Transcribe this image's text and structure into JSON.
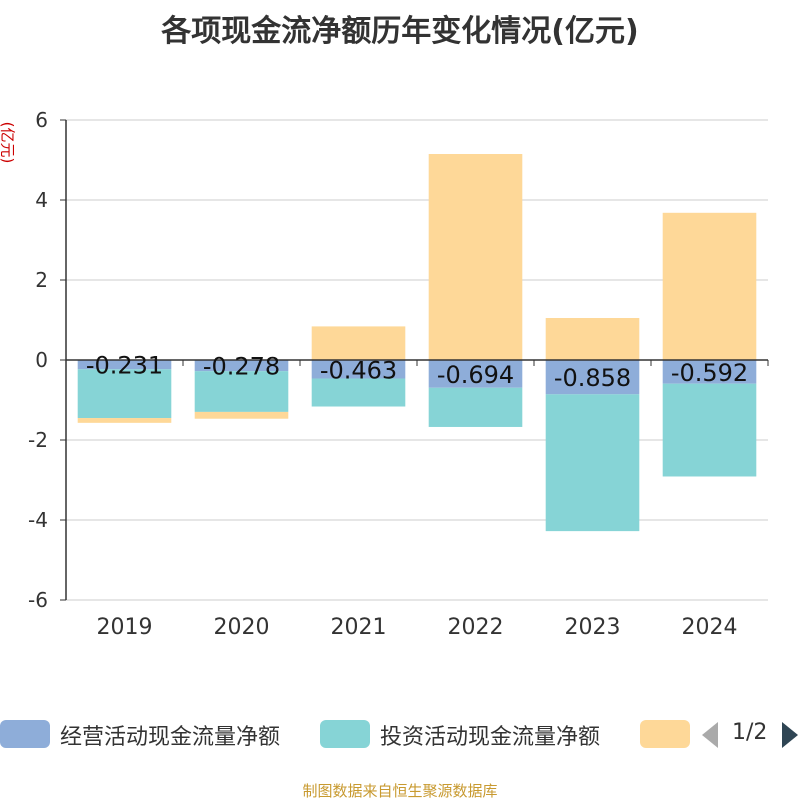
{
  "title": "各项现金流净额历年变化情况(亿元)",
  "unit_label": "(亿元)",
  "source_note": "制图数据来自恒生聚源数据库",
  "legend": {
    "items": [
      {
        "label": "经营活动现金流量净额",
        "color": "#8eadd9"
      },
      {
        "label": "投资活动现金流量净额",
        "color": "#86d4d6"
      },
      {
        "label": "",
        "color": "#fed898"
      }
    ],
    "page_indicator": "1/2"
  },
  "chart_data": {
    "type": "bar",
    "stacked": true,
    "categories": [
      "2019",
      "2020",
      "2021",
      "2022",
      "2023",
      "2024"
    ],
    "ylim": [
      -6,
      6
    ],
    "yticks": [
      6,
      4,
      2,
      0,
      -2,
      -4,
      -6
    ],
    "grid": true,
    "legend_position": "bottom",
    "series": [
      {
        "name": "经营活动现金流量净额",
        "color": "#8eadd9",
        "values": [
          -0.231,
          -0.278,
          -0.463,
          -0.694,
          -0.858,
          -0.592
        ],
        "labels": [
          "-0.231",
          "-0.278",
          "-0.463",
          "-0.694",
          "-0.858",
          "-0.592"
        ]
      },
      {
        "name": "投资活动现金流量净额",
        "color": "#86d4d6",
        "values": [
          -1.22,
          -1.02,
          -0.7,
          -0.98,
          -3.42,
          -2.32
        ]
      },
      {
        "color": "#fed898",
        "values": [
          -0.12,
          -0.17,
          0.84,
          5.15,
          1.05,
          3.68
        ]
      }
    ]
  }
}
